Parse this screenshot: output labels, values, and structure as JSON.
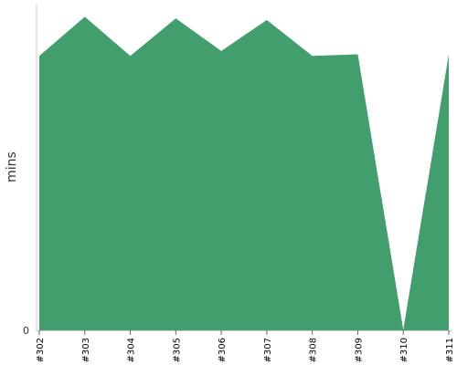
{
  "chart_data": {
    "type": "area",
    "ylabel": "mins",
    "categories": [
      "#302",
      "#303",
      "#304",
      "#305",
      "#306",
      "#307",
      "#308",
      "#309",
      "#310",
      "#311"
    ],
    "y_tick_labels": [
      "0"
    ],
    "ylim": [
      0,
      100
    ],
    "series": [
      {
        "color": "#439e6d",
        "values": [
          84,
          96,
          84,
          95.5,
          85.5,
          95,
          84,
          84.5,
          0,
          84.5
        ]
      }
    ],
    "failure_color": "#5e5e5e",
    "failure_categories": [
      "#310"
    ],
    "grid": false,
    "legend": "none"
  }
}
